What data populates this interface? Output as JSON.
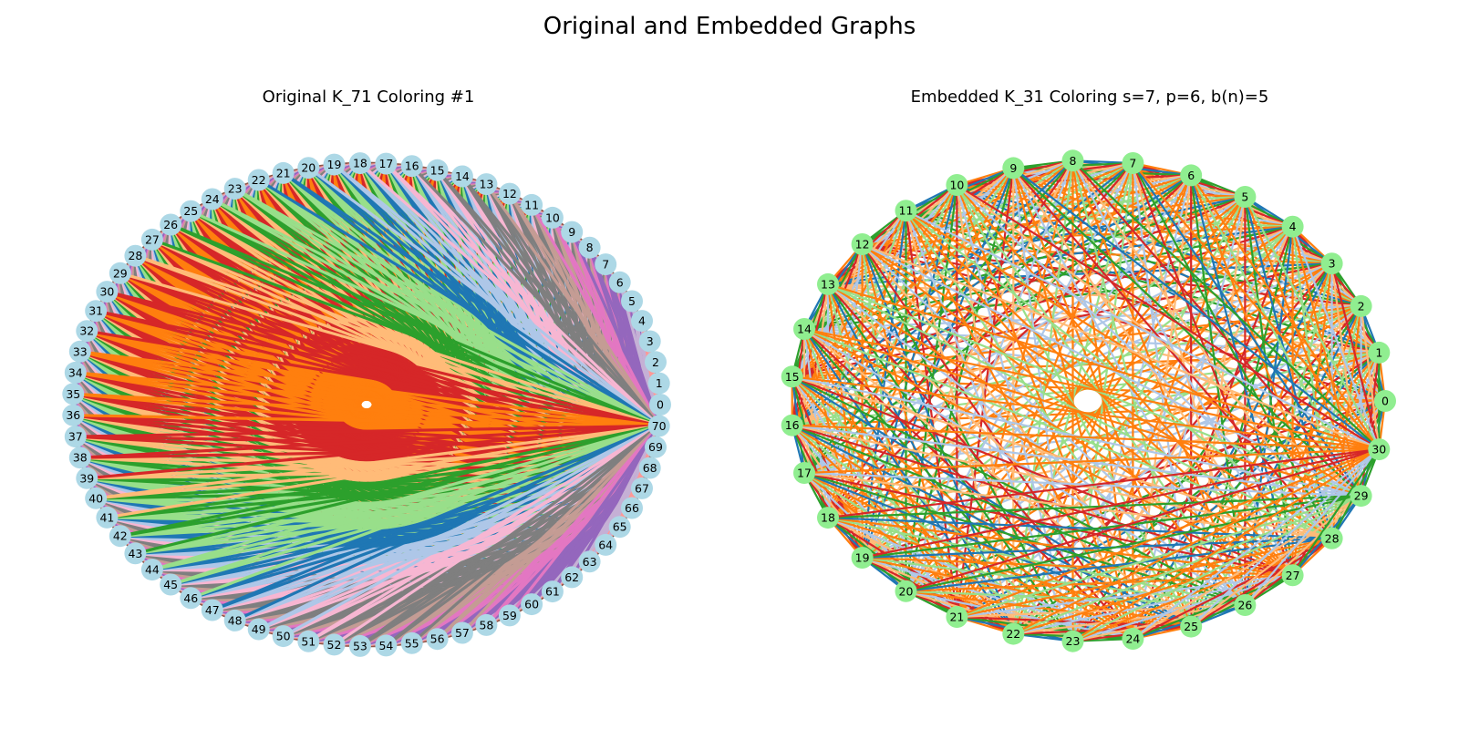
{
  "figure_title": "Original and Embedded Graphs",
  "palette": [
    "#1f77b4",
    "#ff7f0e",
    "#2ca02c",
    "#d62728",
    "#9467bd",
    "#8c564b",
    "#e377c2",
    "#7f7f7f",
    "#aec7e8",
    "#ffbb78",
    "#98df8a",
    "#ff9896",
    "#c5b0d5",
    "#c49c94",
    "#f7b6d2"
  ],
  "panels": [
    {
      "id": "original",
      "title": "Original K_71 Coloring #1",
      "node_count": 71,
      "node_color": "#add8e6",
      "labels": [
        "0",
        "1",
        "2",
        "3",
        "4",
        "5",
        "6",
        "7",
        "8",
        "9",
        "10",
        "11",
        "12",
        "13",
        "14",
        "15",
        "16",
        "17",
        "18",
        "19",
        "20",
        "21",
        "22",
        "23",
        "24",
        "25",
        "26",
        "27",
        "28",
        "29",
        "30",
        "31",
        "32",
        "33",
        "34",
        "35",
        "36",
        "37",
        "38",
        "39",
        "40",
        "41",
        "42",
        "43",
        "44",
        "45",
        "46",
        "47",
        "48",
        "49",
        "50",
        "51",
        "52",
        "53",
        "54",
        "55",
        "56",
        "57",
        "58",
        "59",
        "60",
        "61",
        "62",
        "63",
        "64",
        "65",
        "66",
        "67",
        "68",
        "69",
        "70"
      ]
    },
    {
      "id": "embedded",
      "title": "Embedded K_31 Coloring s=7, p=6, b(n)=5",
      "node_count": 31,
      "node_color": "#90ee90",
      "labels": [
        "0",
        "1",
        "2",
        "3",
        "4",
        "5",
        "6",
        "7",
        "8",
        "9",
        "10",
        "11",
        "12",
        "13",
        "14",
        "15",
        "16",
        "17",
        "18",
        "19",
        "20",
        "21",
        "22",
        "23",
        "24",
        "25",
        "26",
        "27",
        "28",
        "29",
        "30"
      ]
    }
  ]
}
